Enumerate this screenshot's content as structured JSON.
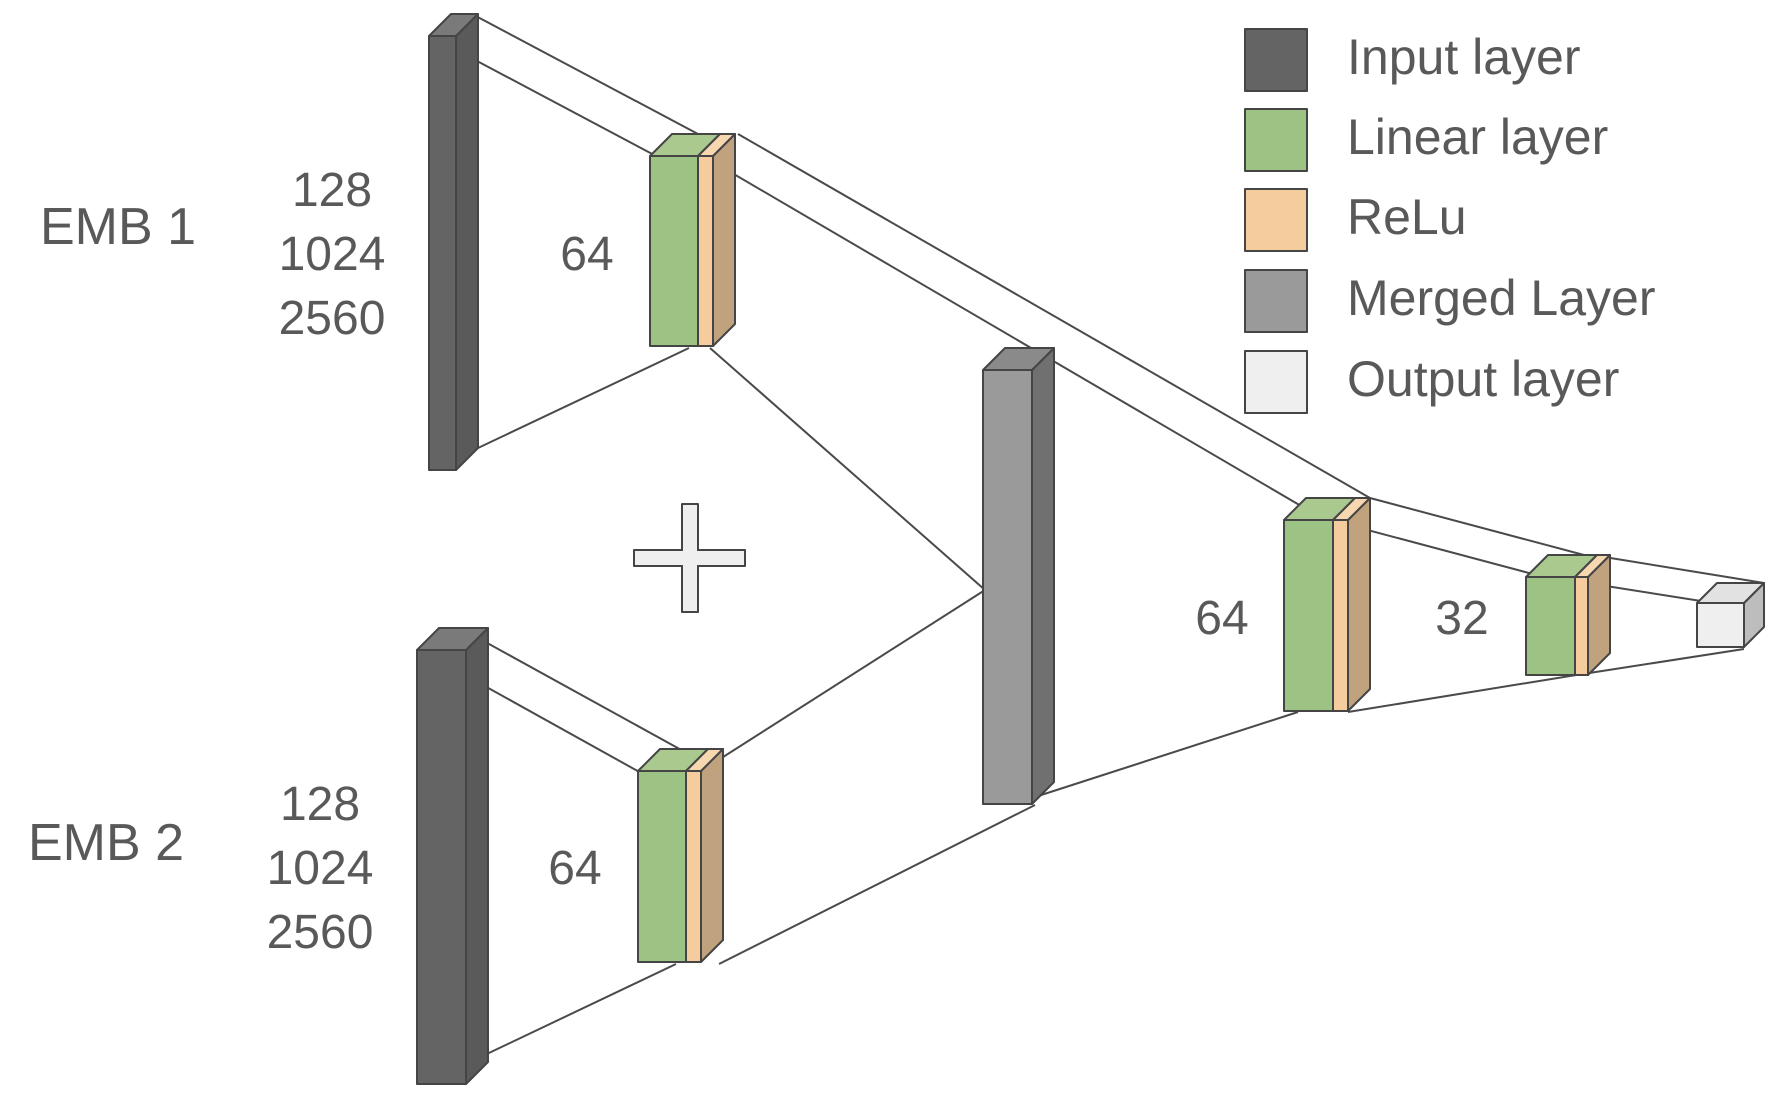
{
  "inputs": [
    {
      "name": "EMB 1",
      "dims": [
        "128",
        "1024",
        "2560"
      ],
      "hidden_size": "64"
    },
    {
      "name": "EMB 2",
      "dims": [
        "128",
        "1024",
        "2560"
      ],
      "hidden_size": "64"
    }
  ],
  "operator": "+",
  "merged_hidden_sizes": [
    "64",
    "32"
  ],
  "legend": [
    {
      "label": "Input layer",
      "color": "#646464"
    },
    {
      "label": "Linear layer",
      "color": "#9dc384"
    },
    {
      "label": "ReLu",
      "color": "#f4cc9e"
    },
    {
      "label": "Merged Layer",
      "color": "#9a9a9a"
    },
    {
      "label": "Output layer",
      "color": "#efefef"
    }
  ],
  "colors": {
    "input": "#646464",
    "linear": "#9dc384",
    "relu": "#f4cc9e",
    "merged": "#9a9a9a",
    "output": "#efefef",
    "text": "#595959",
    "line": "#4a4a4a"
  }
}
